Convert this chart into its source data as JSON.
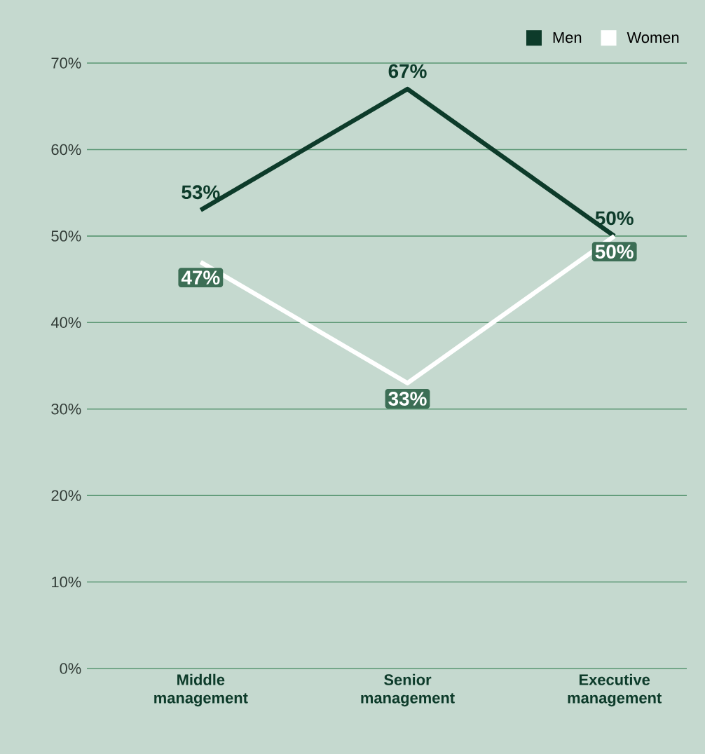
{
  "chart_data": {
    "type": "line",
    "categories": [
      "Middle management",
      "Senior management",
      "Executive management"
    ],
    "series": [
      {
        "name": "Men",
        "color": "#0d3b2a",
        "values": [
          53,
          67,
          50
        ],
        "value_labels": [
          "53%",
          "67%",
          "50%"
        ]
      },
      {
        "name": "Women",
        "color": "#ffffff",
        "values": [
          47,
          33,
          50
        ],
        "value_labels": [
          "47%",
          "33%",
          "50%"
        ]
      }
    ],
    "ylim": [
      0,
      70
    ],
    "yticks": [
      {
        "value": 0,
        "label": "0%"
      },
      {
        "value": 10,
        "label": "10%"
      },
      {
        "value": 20,
        "label": "20%"
      },
      {
        "value": 30,
        "label": "30%"
      },
      {
        "value": 40,
        "label": "40%"
      },
      {
        "value": 50,
        "label": "50%"
      },
      {
        "value": 60,
        "label": "60%"
      },
      {
        "value": 70,
        "label": "70%"
      }
    ],
    "grid": "y",
    "legend": "top right",
    "marker": "none",
    "line_style": "solid"
  }
}
